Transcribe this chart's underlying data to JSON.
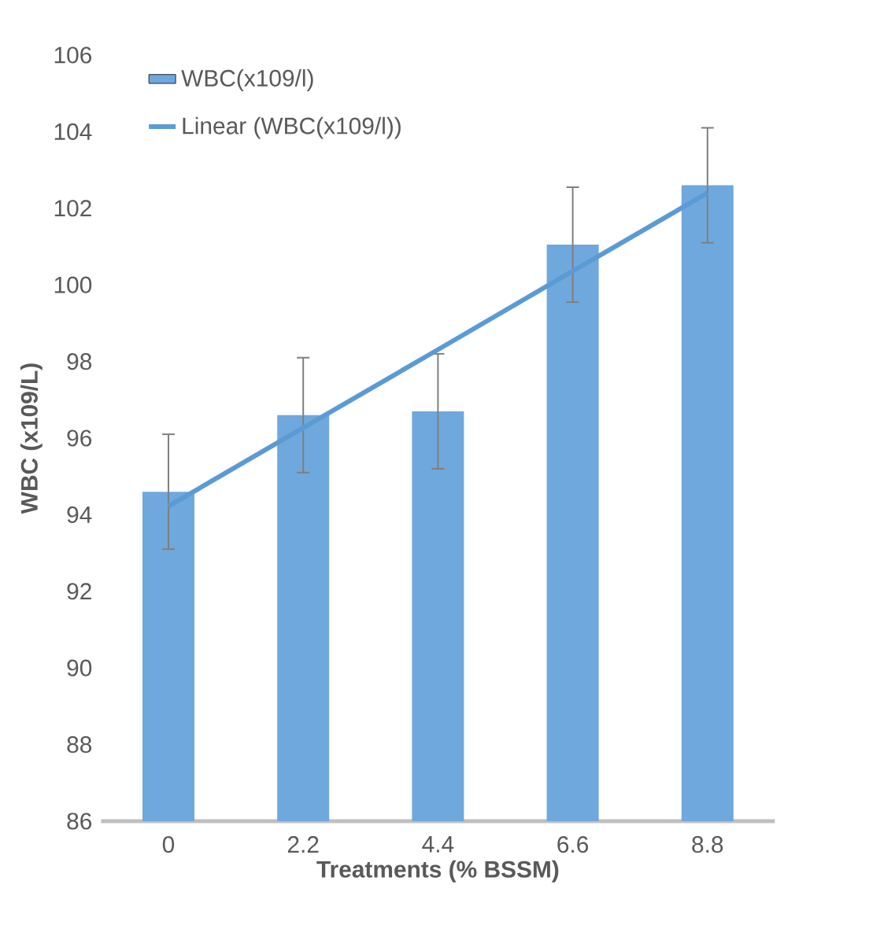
{
  "chart_data": {
    "type": "bar",
    "xlabel": "Treatments (% BSSM)",
    "ylabel": "WBC (x109/L)",
    "categories": [
      "0",
      "2.2",
      "4.4",
      "6.6",
      "8.8"
    ],
    "series": [
      {
        "name": "WBC(x109/l)",
        "color": "#6fa8dc",
        "values": [
          94.6,
          96.6,
          96.7,
          101.05,
          102.6
        ],
        "errors": [
          1.5,
          1.5,
          1.5,
          1.5,
          1.5
        ]
      },
      {
        "name": "Linear (WBC(x109/l))",
        "type": "line",
        "color": "#5b9bd5",
        "values": [
          94.22,
          96.27,
          98.31,
          100.36,
          102.4
        ]
      }
    ],
    "ylim": [
      86,
      106
    ],
    "yticks": [
      86,
      88,
      90,
      92,
      94,
      96,
      98,
      100,
      102,
      104,
      106
    ],
    "grid": false,
    "legend": "top left"
  }
}
